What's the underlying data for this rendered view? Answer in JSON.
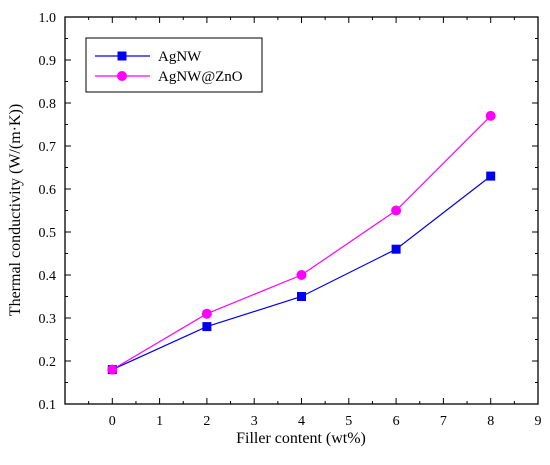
{
  "chart_data": {
    "type": "line",
    "title": "",
    "xlabel": "Filler content (wt%)",
    "ylabel": "Thermal conductivity (W/(m·K))",
    "xlim": [
      -1,
      9
    ],
    "ylim": [
      0.1,
      1.0
    ],
    "xticks": [
      0,
      1,
      2,
      3,
      4,
      5,
      6,
      7,
      8,
      9
    ],
    "yticks": [
      0.1,
      0.2,
      0.3,
      0.4,
      0.5,
      0.6,
      0.7,
      0.8,
      0.9,
      1.0
    ],
    "grid": false,
    "legend_position": "top-left",
    "series": [
      {
        "name": "AgNW",
        "color": "#0000ee",
        "marker": "square",
        "x": [
          0,
          2,
          4,
          6,
          8
        ],
        "y": [
          0.18,
          0.28,
          0.35,
          0.46,
          0.63
        ]
      },
      {
        "name": "AgNW@ZnO",
        "color": "#ff00ff",
        "marker": "circle",
        "x": [
          0,
          2,
          4,
          6,
          8
        ],
        "y": [
          0.18,
          0.31,
          0.4,
          0.55,
          0.77
        ]
      }
    ]
  }
}
